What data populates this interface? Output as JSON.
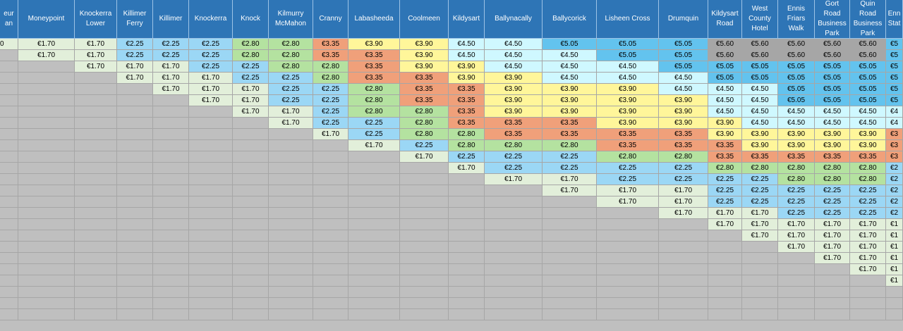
{
  "colors": {
    "header": "#2e75b6",
    "empty": "#bfbfbf",
    "€1.70": "#e2efda",
    "€2.25": "#9bd7f5",
    "€2.80": "#b4e2a0",
    "€3.35": "#f0a07a",
    "€3.90": "#fff69a",
    "€4.50": "#cff8ff",
    "€5.05": "#63c3ee",
    "€5.60": "#a6a6a6"
  },
  "fare_table": {
    "columns": [
      "eur\nan",
      "Moneypoint",
      "Knockerra\nLower",
      "Killimer\nFerry",
      "Killimer",
      "Knockerra",
      "Knock",
      "Kilmurry\nMcMahon",
      "Cranny",
      "Labasheeda",
      "Coolmeen",
      "Kildysart",
      "Ballynacally",
      "Ballycorick",
      "Lisheen Cross",
      "Drumquin",
      "Kildysart\nRoad",
      "West\nCounty\nHotel",
      "Ennis\nFriars\nWalk",
      "Gort\nRoad\nBusiness\nPark",
      "Quin\nRoad\nBusiness\nPark",
      "Enn\nStat"
    ],
    "rows": [
      [
        "0",
        "€1.70",
        "€1.70",
        "€2.25",
        "€2.25",
        "€2.25",
        "€2.80",
        "€2.80",
        "€3.35",
        "€3.90",
        "€3.90",
        "€4.50",
        "€4.50",
        "€5.05",
        "€5.05",
        "€5.05",
        "€5.60",
        "€5.60",
        "€5.60",
        "€5.60",
        "€5.60",
        "€5"
      ],
      [
        "",
        "€1.70",
        "€1.70",
        "€2.25",
        "€2.25",
        "€2.25",
        "€2.80",
        "€2.80",
        "€3.35",
        "€3.35",
        "€3.90",
        "€4.50",
        "€4.50",
        "€4.50",
        "€5.05",
        "€5.05",
        "€5.60",
        "€5.60",
        "€5.60",
        "€5.60",
        "€5.60",
        "€5"
      ],
      [
        "",
        "",
        "€1.70",
        "€1.70",
        "€1.70",
        "€2.25",
        "€2.25",
        "€2.80",
        "€2.80",
        "€3.35",
        "€3.90",
        "€3.90",
        "€4.50",
        "€4.50",
        "€4.50",
        "€5.05",
        "€5.05",
        "€5.05",
        "€5.05",
        "€5.05",
        "€5.05",
        "€5"
      ],
      [
        "",
        "",
        "",
        "€1.70",
        "€1.70",
        "€1.70",
        "€2.25",
        "€2.25",
        "€2.80",
        "€3.35",
        "€3.35",
        "€3.90",
        "€3.90",
        "€4.50",
        "€4.50",
        "€4.50",
        "€5.05",
        "€5.05",
        "€5.05",
        "€5.05",
        "€5.05",
        "€5"
      ],
      [
        "",
        "",
        "",
        "",
        "€1.70",
        "€1.70",
        "€1.70",
        "€2.25",
        "€2.25",
        "€2.80",
        "€3.35",
        "€3.35",
        "€3.90",
        "€3.90",
        "€3.90",
        "€4.50",
        "€4.50",
        "€4.50",
        "€5.05",
        "€5.05",
        "€5.05",
        "€5"
      ],
      [
        "",
        "",
        "",
        "",
        "",
        "€1.70",
        "€1.70",
        "€2.25",
        "€2.25",
        "€2.80",
        "€3.35",
        "€3.35",
        "€3.90",
        "€3.90",
        "€3.90",
        "€3.90",
        "€4.50",
        "€4.50",
        "€5.05",
        "€5.05",
        "€5.05",
        "€5"
      ],
      [
        "",
        "",
        "",
        "",
        "",
        "",
        "€1.70",
        "€1.70",
        "€2.25",
        "€2.80",
        "€2.80",
        "€3.35",
        "€3.90",
        "€3.90",
        "€3.90",
        "€3.90",
        "€4.50",
        "€4.50",
        "€4.50",
        "€4.50",
        "€4.50",
        "€4"
      ],
      [
        "",
        "",
        "",
        "",
        "",
        "",
        "",
        "€1.70",
        "€2.25",
        "€2.25",
        "€2.80",
        "€3.35",
        "€3.35",
        "€3.35",
        "€3.90",
        "€3.90",
        "€3.90",
        "€4.50",
        "€4.50",
        "€4.50",
        "€4.50",
        "€4"
      ],
      [
        "",
        "",
        "",
        "",
        "",
        "",
        "",
        "",
        "€1.70",
        "€2.25",
        "€2.80",
        "€2.80",
        "€3.35",
        "€3.35",
        "€3.35",
        "€3.35",
        "€3.90",
        "€3.90",
        "€3.90",
        "€3.90",
        "€3.90",
        "€3"
      ],
      [
        "",
        "",
        "",
        "",
        "",
        "",
        "",
        "",
        "",
        "€1.70",
        "€2.25",
        "€2.80",
        "€2.80",
        "€2.80",
        "€3.35",
        "€3.35",
        "€3.35",
        "€3.90",
        "€3.90",
        "€3.90",
        "€3.90",
        "€3"
      ],
      [
        "",
        "",
        "",
        "",
        "",
        "",
        "",
        "",
        "",
        "",
        "€1.70",
        "€2.25",
        "€2.25",
        "€2.25",
        "€2.80",
        "€2.80",
        "€3.35",
        "€3.35",
        "€3.35",
        "€3.35",
        "€3.35",
        "€3"
      ],
      [
        "",
        "",
        "",
        "",
        "",
        "",
        "",
        "",
        "",
        "",
        "",
        "€1.70",
        "€2.25",
        "€2.25",
        "€2.25",
        "€2.25",
        "€2.80",
        "€2.80",
        "€2.80",
        "€2.80",
        "€2.80",
        "€2"
      ],
      [
        "",
        "",
        "",
        "",
        "",
        "",
        "",
        "",
        "",
        "",
        "",
        "",
        "€1.70",
        "€1.70",
        "€2.25",
        "€2.25",
        "€2.25",
        "€2.25",
        "€2.80",
        "€2.80",
        "€2.80",
        "€2"
      ],
      [
        "",
        "",
        "",
        "",
        "",
        "",
        "",
        "",
        "",
        "",
        "",
        "",
        "",
        "€1.70",
        "€1.70",
        "€1.70",
        "€2.25",
        "€2.25",
        "€2.25",
        "€2.25",
        "€2.25",
        "€2"
      ],
      [
        "",
        "",
        "",
        "",
        "",
        "",
        "",
        "",
        "",
        "",
        "",
        "",
        "",
        "",
        "€1.70",
        "€1.70",
        "€2.25",
        "€2.25",
        "€2.25",
        "€2.25",
        "€2.25",
        "€2"
      ],
      [
        "",
        "",
        "",
        "",
        "",
        "",
        "",
        "",
        "",
        "",
        "",
        "",
        "",
        "",
        "",
        "€1.70",
        "€1.70",
        "€1.70",
        "€2.25",
        "€2.25",
        "€2.25",
        "€2"
      ],
      [
        "",
        "",
        "",
        "",
        "",
        "",
        "",
        "",
        "",
        "",
        "",
        "",
        "",
        "",
        "",
        "",
        "€1.70",
        "€1.70",
        "€1.70",
        "€1.70",
        "€1.70",
        "€1"
      ],
      [
        "",
        "",
        "",
        "",
        "",
        "",
        "",
        "",
        "",
        "",
        "",
        "",
        "",
        "",
        "",
        "",
        "",
        "€1.70",
        "€1.70",
        "€1.70",
        "€1.70",
        "€1"
      ],
      [
        "",
        "",
        "",
        "",
        "",
        "",
        "",
        "",
        "",
        "",
        "",
        "",
        "",
        "",
        "",
        "",
        "",
        "",
        "€1.70",
        "€1.70",
        "€1.70",
        "€1"
      ],
      [
        "",
        "",
        "",
        "",
        "",
        "",
        "",
        "",
        "",
        "",
        "",
        "",
        "",
        "",
        "",
        "",
        "",
        "",
        "",
        "€1.70",
        "€1.70",
        "€1"
      ],
      [
        "",
        "",
        "",
        "",
        "",
        "",
        "",
        "",
        "",
        "",
        "",
        "",
        "",
        "",
        "",
        "",
        "",
        "",
        "",
        "",
        "€1.70",
        "€1"
      ],
      [
        "",
        "",
        "",
        "",
        "",
        "",
        "",
        "",
        "",
        "",
        "",
        "",
        "",
        "",
        "",
        "",
        "",
        "",
        "",
        "",
        "",
        "€1"
      ],
      [
        "",
        "",
        "",
        "",
        "",
        "",
        "",
        "",
        "",
        "",
        "",
        "",
        "",
        "",
        "",
        "",
        "",
        "",
        "",
        "",
        "",
        ""
      ],
      [
        "",
        "",
        "",
        "",
        "",
        "",
        "",
        "",
        "",
        "",
        "",
        "",
        "",
        "",
        "",
        "",
        "",
        "",
        "",
        "",
        "",
        ""
      ],
      [
        "",
        "",
        "",
        "",
        "",
        "",
        "",
        "",
        "",
        "",
        "",
        "",
        "",
        "",
        "",
        "",
        "",
        "",
        "",
        "",
        "",
        ""
      ]
    ]
  }
}
